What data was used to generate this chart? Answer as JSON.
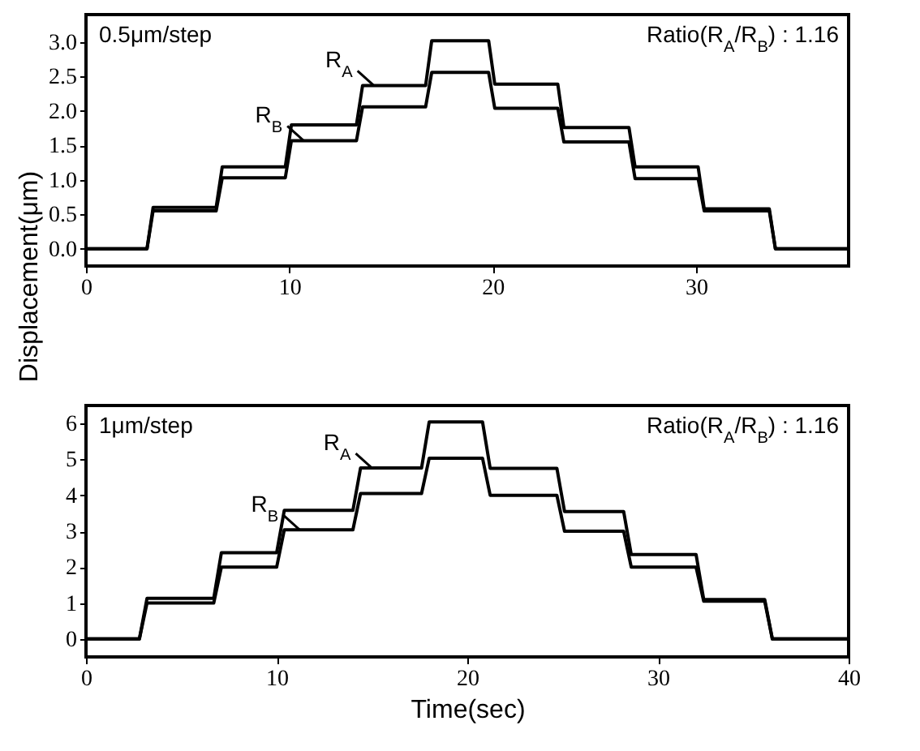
{
  "chart_data": [
    {
      "type": "line",
      "ylabel": "Displacement(μm)",
      "annotations": [
        "0.5μm/step",
        "Ratio(R$_{A}$/R$_{B}$) : 1.16"
      ],
      "xlim": [
        0,
        37.5
      ],
      "xticks": [
        0,
        10,
        20,
        30
      ],
      "legend": "top left",
      "ylim": [
        -0.25,
        3.4
      ],
      "yticks": [
        {
          "value": 0,
          "label": "0.0"
        },
        {
          "value": 0.5,
          "label": "0.5"
        },
        {
          "value": 1,
          "label": "1.0"
        },
        {
          "value": 1.5,
          "label": "1.5"
        },
        {
          "value": 2,
          "label": "2.0"
        },
        {
          "value": 2.5,
          "label": "2.5"
        },
        {
          "value": 3,
          "label": "3.0"
        }
      ],
      "grid": false,
      "marker": "none",
      "line_style": "solid",
      "series": [
        {
          "name": "R$_{A}$",
          "color": "#000000",
          "x": [
            0,
            3.0,
            3.3,
            6.4,
            6.7,
            9.8,
            10.1,
            13.3,
            13.6,
            16.7,
            17.0,
            19.8,
            20.1,
            23.2,
            23.5,
            26.7,
            27.0,
            30.1,
            30.4,
            33.6,
            33.9,
            37.5
          ],
          "values": [
            0,
            0,
            0.6,
            0.6,
            1.19,
            1.19,
            1.8,
            1.8,
            2.37,
            2.37,
            3.02,
            3.02,
            2.39,
            2.39,
            1.76,
            1.76,
            1.19,
            1.19,
            0.58,
            0.58,
            0,
            0
          ]
        },
        {
          "name": "R$_{B}$",
          "color": "#000000",
          "x": [
            0,
            3.0,
            3.3,
            6.4,
            6.7,
            9.8,
            10.1,
            13.3,
            13.6,
            16.7,
            17.0,
            19.8,
            20.1,
            23.2,
            23.5,
            26.7,
            27.0,
            30.1,
            30.4,
            33.6,
            33.9,
            37.5
          ],
          "values": [
            0,
            0,
            0.55,
            0.55,
            1.03,
            1.03,
            1.57,
            1.57,
            2.06,
            2.06,
            2.56,
            2.56,
            2.04,
            2.04,
            1.55,
            1.55,
            1.02,
            1.02,
            0.55,
            0.55,
            0,
            0
          ]
        }
      ]
    },
    {
      "type": "line",
      "xlabel": "Time(sec)",
      "annotations": [
        "1μm/step",
        "Ratio(R$_{A}$/R$_{B}$) : 1.16"
      ],
      "xlim": [
        0,
        40
      ],
      "xticks": [
        0,
        10,
        20,
        30,
        40
      ],
      "legend": "top left",
      "ylim": [
        -0.5,
        6.5
      ],
      "yticks": [
        0,
        1,
        2,
        3,
        4,
        5,
        6
      ],
      "grid": false,
      "marker": "none",
      "line_style": "solid",
      "series": [
        {
          "name": "R$_{A}$",
          "color": "#000000",
          "x": [
            0,
            2.8,
            3.2,
            6.7,
            7.1,
            10.0,
            10.4,
            14.0,
            14.4,
            17.6,
            18.0,
            20.8,
            21.2,
            24.7,
            25.1,
            28.2,
            28.6,
            32.0,
            32.4,
            35.6,
            36.0,
            40
          ],
          "values": [
            0,
            0,
            1.13,
            1.13,
            2.4,
            2.4,
            3.58,
            3.58,
            4.76,
            4.76,
            6.04,
            6.04,
            4.75,
            4.75,
            3.55,
            3.55,
            2.35,
            2.35,
            1.1,
            1.1,
            0,
            0
          ]
        },
        {
          "name": "R$_{B}$",
          "color": "#000000",
          "x": [
            0,
            2.8,
            3.2,
            6.7,
            7.1,
            10.0,
            10.4,
            14.0,
            14.4,
            17.6,
            18.0,
            20.8,
            21.2,
            24.7,
            25.1,
            28.2,
            28.6,
            32.0,
            32.4,
            35.6,
            36.0,
            40
          ],
          "values": [
            0,
            0,
            1.0,
            1.0,
            2.0,
            2.0,
            3.04,
            3.04,
            4.05,
            4.05,
            5.03,
            5.03,
            4.0,
            4.0,
            3.0,
            3.0,
            2.0,
            2.0,
            1.05,
            1.05,
            0,
            0
          ]
        }
      ]
    }
  ]
}
